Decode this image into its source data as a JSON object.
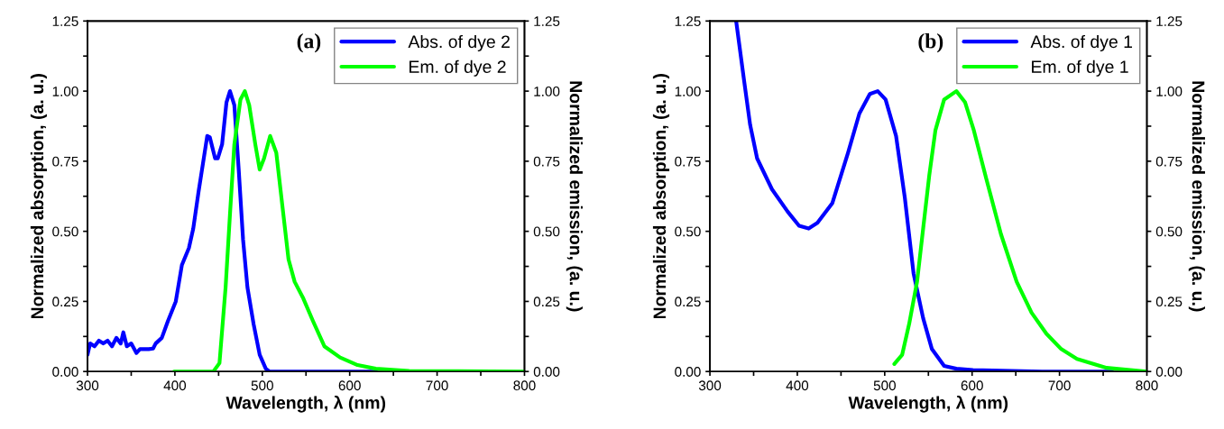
{
  "chart_data": [
    {
      "type": "line",
      "xlabel": "Wavelength, λ (nm)",
      "ylabel": "Normalized absorption, (a. u.)",
      "y2label": "Normalized emission, (a. u.)",
      "annotations": [
        "(a)"
      ],
      "xlim": [
        300,
        800
      ],
      "xticks": [
        300,
        {
          "value": 350,
          "label": null
        },
        400,
        {
          "value": 450,
          "label": null
        },
        500,
        {
          "value": 550,
          "label": null
        },
        600,
        {
          "value": 650,
          "label": null
        },
        700,
        {
          "value": 750,
          "label": null
        },
        800
      ],
      "ylim": [
        0,
        1.25
      ],
      "yticks": [
        {
          "value": 0,
          "label": "0.00"
        },
        {
          "value": 0.125,
          "label": null
        },
        0.25,
        {
          "value": 0.375,
          "label": null
        },
        {
          "value": 0.5,
          "label": "0.50"
        },
        {
          "value": 0.625,
          "label": null
        },
        0.75,
        {
          "value": 0.875,
          "label": null
        },
        {
          "value": 1,
          "label": "1.00"
        },
        {
          "value": 1.125,
          "label": null
        },
        1.25
      ],
      "y2lim": [
        0,
        1.25
      ],
      "y2ticks": [
        {
          "value": 0,
          "label": "0.00"
        },
        {
          "value": 0.125,
          "label": null
        },
        0.25,
        {
          "value": 0.375,
          "label": null
        },
        {
          "value": 0.5,
          "label": "0.50"
        },
        {
          "value": 0.625,
          "label": null
        },
        0.75,
        {
          "value": 0.875,
          "label": null
        },
        {
          "value": 1,
          "label": "1.00"
        },
        {
          "value": 1.125,
          "label": null
        },
        1.25
      ],
      "legend": "top right",
      "grid": false,
      "series": [
        {
          "name": "Abs. of dye 2",
          "color": "#0000ff",
          "x": [
            300,
            303,
            308,
            313,
            318,
            323,
            328,
            333,
            338,
            341,
            345,
            350,
            356,
            360,
            370,
            375,
            378,
            385,
            392,
            401,
            408,
            416,
            421,
            427,
            431,
            437,
            440,
            446,
            449,
            454,
            459,
            463,
            468,
            473,
            478,
            483,
            490,
            497,
            504,
            508,
            560,
            630
          ],
          "values": [
            0.06,
            0.1,
            0.09,
            0.11,
            0.1,
            0.11,
            0.09,
            0.12,
            0.1,
            0.14,
            0.09,
            0.1,
            0.066,
            0.08,
            0.08,
            0.082,
            0.1,
            0.12,
            0.18,
            0.25,
            0.38,
            0.44,
            0.51,
            0.64,
            0.72,
            0.84,
            0.835,
            0.76,
            0.76,
            0.81,
            0.96,
            1.0,
            0.95,
            0.72,
            0.47,
            0.3,
            0.17,
            0.06,
            0.01,
            0.0,
            0.0,
            0.0
          ]
        },
        {
          "name": "Em. of dye 2",
          "color": "#00ff00",
          "axis": "y2",
          "x": [
            399,
            444,
            451,
            458,
            463,
            468,
            475,
            480,
            485,
            492,
            497,
            502,
            509,
            516,
            523,
            530,
            537,
            547,
            558,
            571,
            589,
            609,
            630,
            668,
            800
          ],
          "values": [
            0.0,
            0.0,
            0.03,
            0.3,
            0.56,
            0.81,
            0.97,
            1.0,
            0.95,
            0.81,
            0.72,
            0.76,
            0.84,
            0.78,
            0.59,
            0.4,
            0.32,
            0.26,
            0.18,
            0.09,
            0.05,
            0.023,
            0.01,
            0.002,
            0.0
          ]
        }
      ]
    },
    {
      "type": "line",
      "xlabel": "Wavelength, λ (nm)",
      "ylabel": "Normalized absorption, (a. u.)",
      "y2label": "Normalized emission, (a. u.)",
      "annotations": [
        "(b)"
      ],
      "xlim": [
        300,
        800
      ],
      "xticks": [
        300,
        {
          "value": 350,
          "label": null
        },
        400,
        {
          "value": 450,
          "label": null
        },
        500,
        {
          "value": 550,
          "label": null
        },
        600,
        {
          "value": 650,
          "label": null
        },
        700,
        {
          "value": 750,
          "label": null
        },
        800
      ],
      "ylim": [
        0,
        1.25
      ],
      "yticks": [
        {
          "value": 0,
          "label": "0.00"
        },
        {
          "value": 0.125,
          "label": null
        },
        0.25,
        {
          "value": 0.375,
          "label": null
        },
        {
          "value": 0.5,
          "label": "0.50"
        },
        {
          "value": 0.625,
          "label": null
        },
        0.75,
        {
          "value": 0.875,
          "label": null
        },
        {
          "value": 1,
          "label": "1.00"
        },
        {
          "value": 1.125,
          "label": null
        },
        1.25
      ],
      "y2lim": [
        0,
        1.25
      ],
      "y2ticks": [
        {
          "value": 0,
          "label": "0.00"
        },
        {
          "value": 0.125,
          "label": null
        },
        0.25,
        {
          "value": 0.375,
          "label": null
        },
        {
          "value": 0.5,
          "label": "0.50"
        },
        {
          "value": 0.625,
          "label": null
        },
        0.75,
        {
          "value": 0.875,
          "label": null
        },
        {
          "value": 1,
          "label": "1.00"
        },
        {
          "value": 1.125,
          "label": null
        },
        1.25
      ],
      "legend": "top right",
      "grid": false,
      "series": [
        {
          "name": "Abs. of dye 1",
          "color": "#0000ff",
          "x": [
            330,
            333,
            339,
            346,
            354,
            371,
            389,
            402,
            413,
            423,
            440,
            458,
            471,
            483,
            492,
            501,
            513,
            523,
            533,
            544,
            554,
            568,
            582,
            601,
            680,
            760
          ],
          "values": [
            1.25,
            1.18,
            1.04,
            0.88,
            0.76,
            0.65,
            0.57,
            0.52,
            0.51,
            0.53,
            0.6,
            0.78,
            0.92,
            0.99,
            1.0,
            0.97,
            0.84,
            0.62,
            0.35,
            0.19,
            0.08,
            0.02,
            0.01,
            0.005,
            0.0,
            0.0
          ]
        },
        {
          "name": "Em. of dye 1",
          "color": "#00ff00",
          "axis": "y2",
          "x": [
            511,
            520,
            528,
            537,
            544,
            551,
            558,
            568,
            582,
            592,
            602,
            616,
            633,
            651,
            668,
            685,
            702,
            720,
            754,
            800
          ],
          "values": [
            0.027,
            0.06,
            0.17,
            0.32,
            0.51,
            0.7,
            0.86,
            0.97,
            1.0,
            0.96,
            0.86,
            0.69,
            0.49,
            0.32,
            0.21,
            0.135,
            0.08,
            0.045,
            0.013,
            0.0
          ]
        }
      ]
    }
  ]
}
